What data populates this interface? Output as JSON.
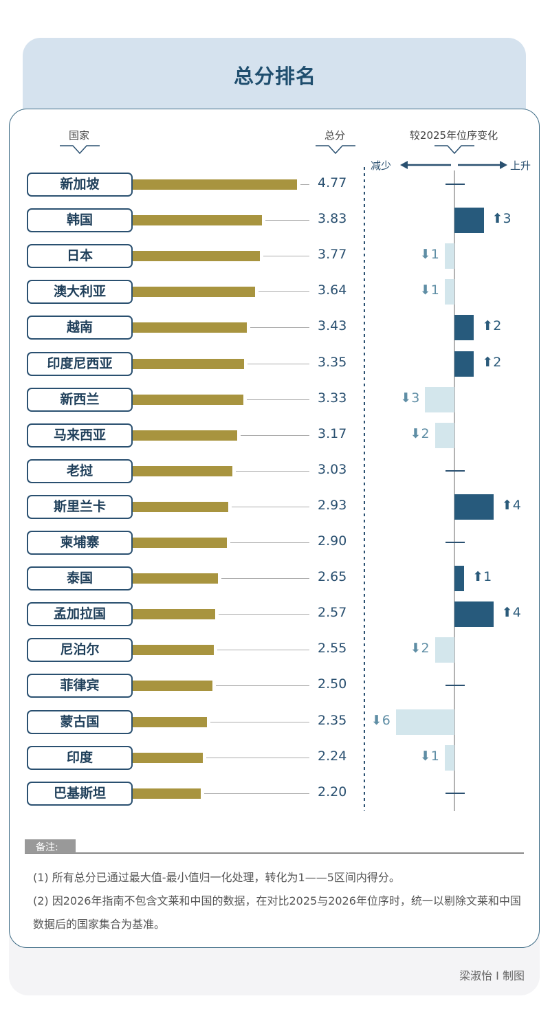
{
  "header": {
    "title": "总分排名"
  },
  "chart_data": {
    "type": "bar",
    "title": "总分排名",
    "column_headers": [
      "国家",
      "总分",
      "较2025年位序变化"
    ],
    "direction_labels": {
      "decrease": "减少",
      "increase": "上升"
    },
    "categories": [
      "新加坡",
      "韩国",
      "日本",
      "澳大利亚",
      "越南",
      "印度尼西亚",
      "新西兰",
      "马来西亚",
      "老挝",
      "斯里兰卡",
      "柬埔寨",
      "泰国",
      "孟加拉国",
      "尼泊尔",
      "菲律宾",
      "蒙古国",
      "印度",
      "巴基斯坦"
    ],
    "series": [
      {
        "name": "总分",
        "values": [
          4.77,
          3.83,
          3.77,
          3.64,
          3.43,
          3.35,
          3.33,
          3.17,
          3.03,
          2.93,
          2.9,
          2.65,
          2.57,
          2.55,
          2.5,
          2.35,
          2.24,
          2.2
        ],
        "labels": [
          "4.77",
          "3.83",
          "3.77",
          "3.64",
          "3.43",
          "3.35",
          "3.33",
          "3.17",
          "3.03",
          "2.93",
          "2.90",
          "2.65",
          "2.57",
          "2.55",
          "2.50",
          "2.35",
          "2.24",
          "2.20"
        ]
      },
      {
        "name": "较2025年位序变化",
        "values": [
          0,
          3,
          -1,
          -1,
          2,
          2,
          -3,
          -2,
          0,
          4,
          0,
          1,
          4,
          -2,
          0,
          -6,
          -1,
          0
        ]
      }
    ],
    "colors": {
      "score_bar": "#a8943f",
      "rank_up": "#275a7c",
      "rank_down": "#d3e6ec"
    }
  },
  "notes": {
    "label": "备注:",
    "items": [
      "(1) 所有总分已通过最大值-最小值归一化处理，转化为1——5区间内得分。",
      "(2) 因2026年指南不包含文莱和中国的数据，在对比2025与2026年位序时，统一以剔除文莱和中国数据后的国家集合为基准。"
    ]
  },
  "footer": {
    "credit": "梁淑怡 I 制图"
  }
}
